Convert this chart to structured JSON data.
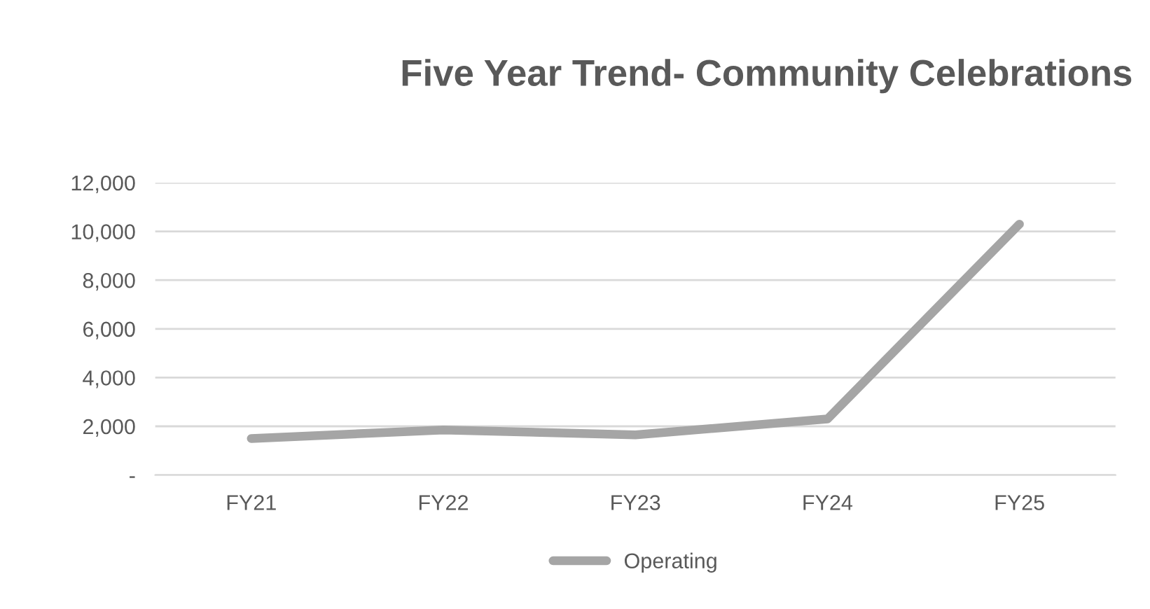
{
  "chart_data": {
    "type": "line",
    "title": "Five Year Trend- Community Celebrations",
    "categories": [
      "FY21",
      "FY22",
      "FY23",
      "FY24",
      "FY25"
    ],
    "series": [
      {
        "name": "Operating",
        "color": "#a5a5a5",
        "values": [
          1500,
          1850,
          1650,
          2300,
          10300
        ]
      }
    ],
    "ylim": [
      0,
      12000
    ],
    "yticks": [
      {
        "value": 0,
        "label": "-"
      },
      {
        "value": 2000,
        "label": "2,000"
      },
      {
        "value": 4000,
        "label": "4,000"
      },
      {
        "value": 6000,
        "label": "6,000"
      },
      {
        "value": 8000,
        "label": "8,000"
      },
      {
        "value": 10000,
        "label": "10,000"
      },
      {
        "value": 12000,
        "label": "12,000"
      }
    ],
    "grid": "y",
    "legend": "bottom",
    "marker": "none",
    "line_style": "solid"
  }
}
